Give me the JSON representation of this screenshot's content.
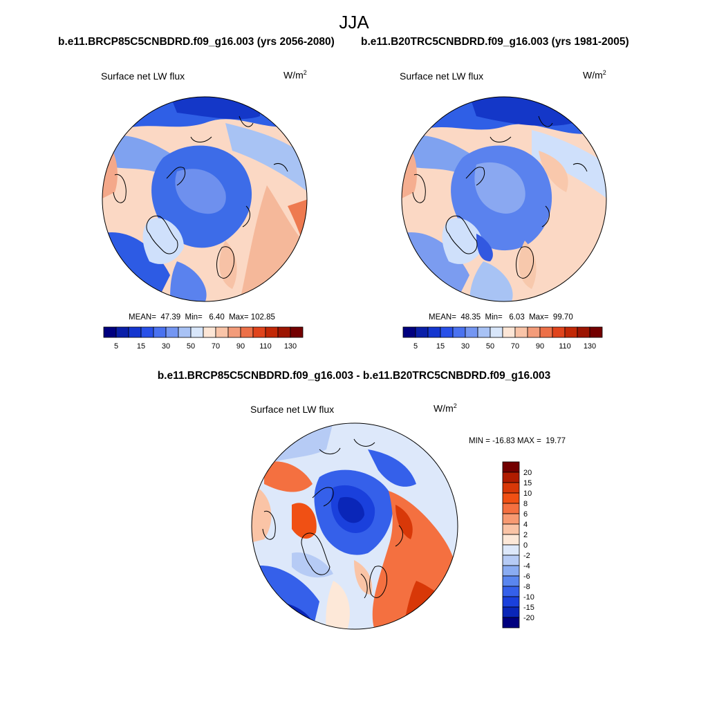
{
  "title": "JJA",
  "panels": {
    "left": {
      "case_title": "b.e11.BRCP85C5CNBDRD.f09_g16.003 (yrs 2056-2080)",
      "variable": "Surface net LW flux",
      "units": "W/m",
      "units_exp": "2",
      "stats": "MEAN=  47.39  Min=   6.40  Max= 102.85"
    },
    "right": {
      "case_title": "b.e11.B20TRC5CNBDRD.f09_g16.003 (yrs 1981-2005)",
      "variable": "Surface net LW flux",
      "units": "W/m",
      "units_exp": "2",
      "stats": "MEAN=  48.35  Min=   6.03  Max=  99.70"
    },
    "diff": {
      "case_title": "b.e11.BRCP85C5CNBDRD.f09_g16.003 - b.e11.B20TRC5CNBDRD.f09_g16.003",
      "variable": "Surface net LW flux",
      "units": "W/m",
      "units_exp": "2",
      "stats": "MIN = -16.83 MAX =  19.77"
    }
  },
  "colorbars": {
    "abs_colors": [
      "#00007f",
      "#0a1fa8",
      "#1436cf",
      "#2850e8",
      "#4a72f0",
      "#7496f2",
      "#a8c2f5",
      "#d8e6fa",
      "#fde6d6",
      "#f9c4a8",
      "#f39c7a",
      "#ec7048",
      "#e0441c",
      "#c22806",
      "#9c1502",
      "#730000"
    ],
    "abs_labels": [
      "5",
      "15",
      "30",
      "50",
      "70",
      "90",
      "110",
      "130"
    ],
    "diff_colors": [
      "#730000",
      "#b01c00",
      "#d83808",
      "#f05014",
      "#f47040",
      "#f79a72",
      "#fac4a6",
      "#fde8d8",
      "#dde8fa",
      "#b6cbf5",
      "#8aacf2",
      "#5a86ef",
      "#3560ea",
      "#1a40dc",
      "#0a26b8",
      "#00007f"
    ],
    "diff_labels": [
      "20",
      "15",
      "10",
      "8",
      "6",
      "4",
      "2",
      "0",
      "-2",
      "-4",
      "-6",
      "-8",
      "-10",
      "-15",
      "-20"
    ]
  }
}
